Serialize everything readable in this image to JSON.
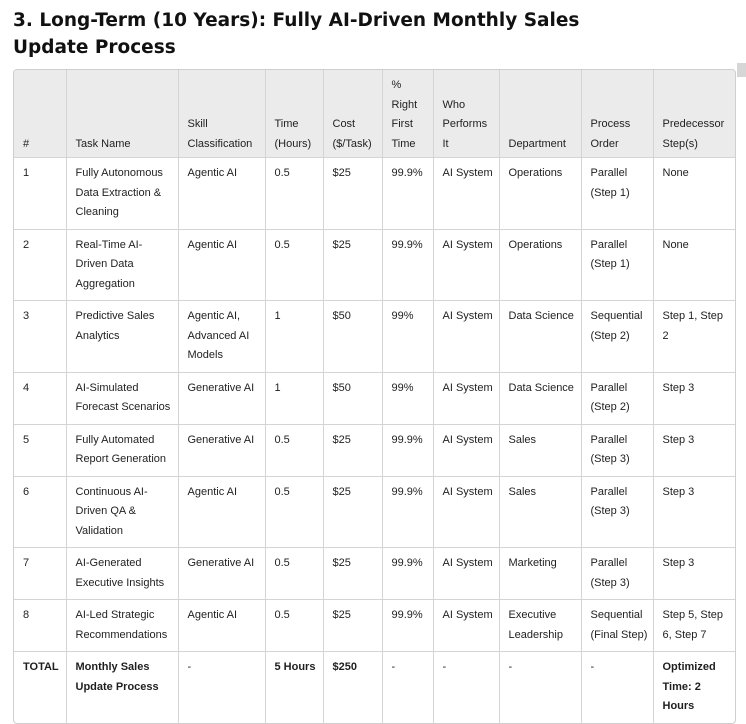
{
  "title": "3. Long-Term (10 Years): Fully AI-Driven Monthly Sales Update Process",
  "table": {
    "columns": [
      "#",
      "Task Name",
      "Skill Classification",
      "Time (Hours)",
      "Cost ($/Task)",
      "% Right First Time",
      "Who Performs It",
      "Department",
      "Process Order",
      "Predecessor Step(s)"
    ],
    "rows": [
      [
        "1",
        "Fully Autonomous Data Extraction & Cleaning",
        "Agentic AI",
        "0.5",
        "$25",
        "99.9%",
        "AI System",
        "Operations",
        "Parallel (Step 1)",
        "None"
      ],
      [
        "2",
        "Real-Time AI-Driven Data Aggregation",
        "Agentic AI",
        "0.5",
        "$25",
        "99.9%",
        "AI System",
        "Operations",
        "Parallel (Step 1)",
        "None"
      ],
      [
        "3",
        "Predictive Sales Analytics",
        "Agentic AI, Advanced AI Models",
        "1",
        "$50",
        "99%",
        "AI System",
        "Data Science",
        "Sequential (Step 2)",
        "Step 1, Step 2"
      ],
      [
        "4",
        "AI-Simulated Forecast Scenarios",
        "Generative AI",
        "1",
        "$50",
        "99%",
        "AI System",
        "Data Science",
        "Parallel (Step 2)",
        "Step 3"
      ],
      [
        "5",
        "Fully Automated Report Generation",
        "Generative AI",
        "0.5",
        "$25",
        "99.9%",
        "AI System",
        "Sales",
        "Parallel (Step 3)",
        "Step 3"
      ],
      [
        "6",
        "Continuous AI-Driven QA & Validation",
        "Agentic AI",
        "0.5",
        "$25",
        "99.9%",
        "AI System",
        "Sales",
        "Parallel (Step 3)",
        "Step 3"
      ],
      [
        "7",
        "AI-Generated Executive Insights",
        "Generative AI",
        "0.5",
        "$25",
        "99.9%",
        "AI System",
        "Marketing",
        "Parallel (Step 3)",
        "Step 3"
      ],
      [
        "8",
        "AI-Led Strategic Recommendations",
        "Agentic AI",
        "0.5",
        "$25",
        "99.9%",
        "AI System",
        "Executive Leadership",
        "Sequential (Final Step)",
        "Step 5, Step 6, Step 7"
      ]
    ],
    "total": [
      "TOTAL",
      "Monthly Sales Update Process",
      "-",
      "5 Hours",
      "$250",
      "-",
      "-",
      "-",
      "-",
      "Optimized Time: 2 Hours"
    ]
  }
}
